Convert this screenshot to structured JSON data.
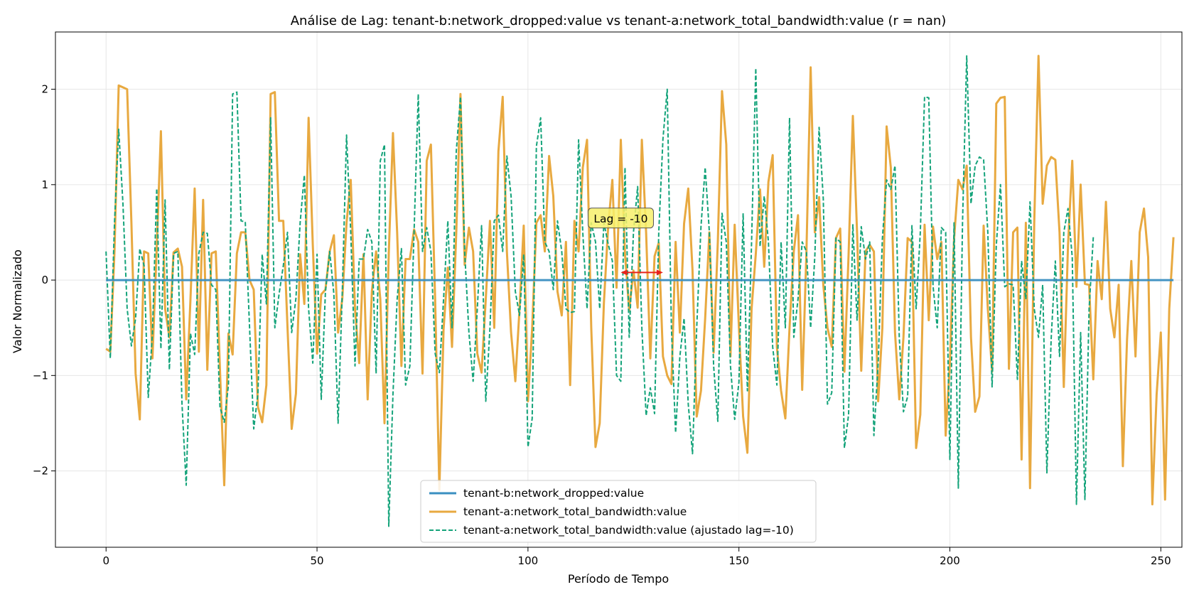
{
  "chart_data": {
    "type": "line",
    "title": "Análise de Lag: tenant-b:network_dropped:value vs tenant-a:network_total_bandwidth:value (r = nan)",
    "xlabel": "Período de Tempo",
    "ylabel": "Valor Normalizado",
    "xlim": [
      -12,
      255
    ],
    "ylim": [
      -2.8,
      2.6
    ],
    "xticks": [
      0,
      50,
      100,
      150,
      200,
      250
    ],
    "yticks": [
      -2,
      -1,
      0,
      1,
      2
    ],
    "ytick_labels": [
      "−2",
      "−1",
      "0",
      "1",
      "2"
    ],
    "grid": true,
    "legend_position": "lower-center",
    "annotation": {
      "text": "Lag = -10",
      "x_start": 122,
      "x_end": 132,
      "y": 0.08,
      "label_x": 122,
      "label_y": 0.65
    },
    "colors": {
      "series1": "#3a8fc1",
      "series2": "#e8a940",
      "series3": "#14a37a",
      "arrow": "#e8231c",
      "annot_bg": "#f7f06b"
    },
    "series": [
      {
        "name": "tenant-b:network_dropped:value",
        "style": "solid",
        "x_start": 0,
        "values": [
          0,
          0
        ]
      },
      {
        "name": "tenant-a:network_total_bandwidth:value",
        "style": "solid",
        "x_start": 0,
        "values": [
          -0.72,
          -0.75,
          0.3,
          2.04,
          2.02,
          2.0,
          0.6,
          -0.98,
          -1.46,
          0.3,
          0.28,
          -0.82,
          0.33,
          1.56,
          -0.3,
          -0.6,
          0.29,
          0.33,
          0.14,
          -1.25,
          -0.2,
          0.96,
          -0.75,
          0.84,
          -0.94,
          0.28,
          0.3,
          -0.94,
          -2.15,
          -0.56,
          -0.78,
          0.28,
          0.5,
          0.5,
          0.0,
          -0.1,
          -1.33,
          -1.49,
          -1.1,
          1.95,
          1.97,
          0.62,
          0.62,
          -0.49,
          -1.56,
          -1.19,
          0.27,
          -0.25,
          1.7,
          0.37,
          -0.77,
          -0.15,
          -0.1,
          0.3,
          0.47,
          -0.55,
          -0.19,
          0.6,
          1.05,
          -0.3,
          -0.87,
          0.27,
          -1.25,
          -0.12,
          0.3,
          -0.2,
          -1.5,
          0.28,
          1.54,
          0.5,
          -0.9,
          0.22,
          0.22,
          0.53,
          0.4,
          -0.98,
          1.25,
          1.42,
          -0.22,
          -2.2,
          -0.52,
          0.13,
          -0.7,
          0.5,
          1.95,
          0.16,
          0.55,
          0.3,
          -0.77,
          -0.97,
          -0.2,
          0.62,
          -0.5,
          1.35,
          1.92,
          0.3,
          -0.55,
          -1.06,
          -0.3,
          0.57,
          -1.27,
          -0.5,
          0.6,
          0.68,
          0.3,
          1.3,
          0.88,
          -0.12,
          -0.37,
          0.4,
          -1.1,
          0.62,
          0.3,
          1.18,
          1.47,
          -0.5,
          -1.75,
          -1.5,
          -0.24,
          0.56,
          1.05,
          -0.08,
          1.47,
          0.27,
          -0.32,
          0.1,
          -0.29,
          1.47,
          0.5,
          -0.82,
          0.25,
          0.39,
          -0.8,
          -1.0,
          -1.09,
          0.4,
          -0.55,
          0.59,
          0.96,
          0.1,
          -1.43,
          -1.16,
          -0.4,
          0.5,
          -0.76,
          0.4,
          1.98,
          1.42,
          -0.8,
          0.58,
          -0.5,
          -1.43,
          -1.81,
          -0.3,
          0.27,
          0.95,
          0.14,
          1.03,
          1.31,
          -0.7,
          -1.16,
          -1.45,
          -0.5,
          0.3,
          0.68,
          -1.15,
          0.3,
          2.23,
          0.5,
          0.87,
          -0.05,
          -0.5,
          -0.7,
          0.44,
          0.54,
          -0.96,
          0.27,
          1.72,
          0.5,
          -0.95,
          0.3,
          0.37,
          0.3,
          -1.27,
          -0.5,
          1.61,
          1.18,
          -0.55,
          -1.25,
          -0.6,
          0.44,
          0.4,
          -1.76,
          -1.41,
          0.58,
          -0.42,
          0.56,
          0.22,
          0.4,
          -1.63,
          -0.87,
          0.43,
          1.05,
          0.95,
          1.2,
          -0.6,
          -1.38,
          -1.22,
          0.57,
          -0.3,
          -0.96,
          1.85,
          1.91,
          1.92,
          -0.93,
          0.5,
          0.55,
          -1.88,
          0.6,
          -2.18,
          0.6,
          2.35,
          0.8,
          1.2,
          1.29,
          1.26,
          0.5,
          -1.12,
          0.36,
          1.25,
          -0.07,
          1.0,
          -0.04,
          -0.05,
          -1.04,
          0.2,
          -0.2,
          0.82,
          -0.3,
          -0.6,
          -0.05,
          -1.95,
          -0.62,
          0.2,
          -0.8,
          0.5,
          0.75,
          0.24,
          -2.35,
          -1.2,
          -0.55,
          -2.3,
          -0.3,
          0.45
        ]
      },
      {
        "name": "tenant-a:network_total_bandwidth:value (ajustado lag=-10)",
        "style": "dashed",
        "x_start": 0,
        "values": [
          0.3,
          -0.82,
          0.6,
          1.58,
          0.8,
          -0.3,
          -0.69,
          -0.4,
          0.33,
          0.15,
          -1.23,
          -0.56,
          0.96,
          -0.72,
          0.84,
          -0.94,
          0.28,
          0.3,
          -1.3,
          -2.15,
          -0.56,
          -0.78,
          0.28,
          0.5,
          0.49,
          -0.05,
          -0.1,
          -1.33,
          -1.49,
          -1.1,
          1.95,
          1.97,
          0.62,
          0.61,
          -0.49,
          -1.56,
          -1.19,
          0.27,
          -0.25,
          1.7,
          -0.5,
          -0.15,
          0.15,
          0.5,
          -0.55,
          -0.19,
          0.6,
          1.1,
          -0.3,
          -0.87,
          0.27,
          -1.25,
          -0.12,
          0.3,
          -0.15,
          -1.5,
          -0.1,
          1.52,
          0.5,
          -0.9,
          0.22,
          0.22,
          0.53,
          0.4,
          -0.98,
          1.25,
          1.42,
          -2.58,
          -1.2,
          -0.2,
          0.33,
          -1.1,
          -0.9,
          0.5,
          1.95,
          0.3,
          0.55,
          0.3,
          -0.77,
          -0.97,
          -0.2,
          0.62,
          -0.5,
          1.35,
          1.92,
          0.3,
          -0.55,
          -1.06,
          -0.3,
          0.57,
          -1.27,
          -0.5,
          0.62,
          0.68,
          0.3,
          1.3,
          0.88,
          -0.12,
          -0.37,
          0.27,
          -1.75,
          -1.45,
          1.4,
          1.7,
          0.4,
          0.3,
          -0.1,
          0.62,
          0.3,
          -0.3,
          -0.34,
          -0.33,
          1.47,
          0.5,
          -0.3,
          0.6,
          0.4,
          -0.3,
          0.6,
          0.38,
          0.2,
          -1.0,
          -1.06,
          1.18,
          -0.6,
          0.5,
          0.98,
          -0.5,
          -1.42,
          -1.13,
          -1.4,
          0.5,
          1.48,
          2.0,
          -0.5,
          -1.6,
          -0.8,
          -0.4,
          -1.3,
          -1.82,
          -0.5,
          0.56,
          1.18,
          0.5,
          -0.9,
          -1.48,
          0.7,
          0.4,
          -0.9,
          -1.46,
          -1.07,
          0.7,
          -1.16,
          0.4,
          2.22,
          0.35,
          0.88,
          0.4,
          -0.7,
          -1.1,
          0.4,
          -0.5,
          1.7,
          -0.6,
          -0.2,
          0.4,
          0.3,
          -0.5,
          0.25,
          1.6,
          0.85,
          -1.3,
          -1.18,
          0.44,
          0.4,
          -1.76,
          -1.41,
          0.58,
          -0.42,
          0.56,
          0.22,
          0.4,
          -1.63,
          -0.87,
          0.43,
          1.05,
          0.95,
          1.2,
          -0.6,
          -1.38,
          -1.22,
          0.57,
          -0.3,
          0.5,
          1.92,
          1.91,
          -0.06,
          -0.5,
          0.55,
          0.5,
          -1.88,
          0.6,
          -2.18,
          0.6,
          2.35,
          0.8,
          1.2,
          1.29,
          1.26,
          0.5,
          -1.12,
          0.36,
          1.0,
          -0.07,
          -0.04,
          -0.05,
          -1.04,
          0.2,
          -0.2,
          0.82,
          -0.3,
          -0.6,
          -0.05,
          -2.02,
          -0.62,
          0.2,
          -0.8,
          0.5,
          0.75,
          0.24,
          -2.35,
          -0.55,
          -2.3,
          -0.3,
          0.45
        ]
      }
    ]
  }
}
